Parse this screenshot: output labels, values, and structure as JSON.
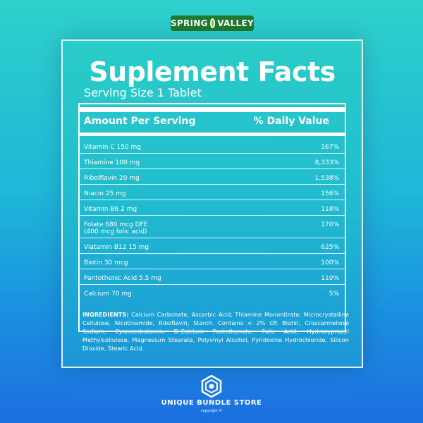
{
  "brand": {
    "left": "SPRING",
    "right": "VALLEY"
  },
  "title": "Suplement Facts",
  "serving": "Serving Size 1 Tablet",
  "header": {
    "amount": "Amount Per Serving",
    "daily": "% Daily Value"
  },
  "rows": [
    {
      "name": "Vitamin  C  150  mg",
      "dv": "167%"
    },
    {
      "name": "Thiamine  100 mg",
      "dv": "8,333%"
    },
    {
      "name": "Ribolflavin  20 mg",
      "dv": "1,538%"
    },
    {
      "name": "Niacin 25  mg",
      "dv": "156%"
    },
    {
      "name": "Vitamin B6  2  mg",
      "dv": "118%"
    },
    {
      "name": "Folate 680 mcg  DFE\n(400 mcg folic acid)",
      "dv": "170%"
    },
    {
      "name": "Viatamin B12  15  mg",
      "dv": "625%"
    },
    {
      "name": "Biotin  30 mcg",
      "dv": "100%"
    },
    {
      "name": "Pantothenic Acid 5.5   mg",
      "dv": "110%"
    },
    {
      "name": "Calcium 70 mg",
      "dv": "5%"
    }
  ],
  "ingredients": {
    "label": "INGREDIENTS:",
    "text": "Calcium Carbonate, Ascorbic Acid, Thiamine Mononitrate, Microcrystalline Cellulose, Nicotinamide, Riboflavin, Starch. Contains < 2% Of: Biotin, Croscarmellose Sodium, Cyanocobalamin, D-Calcium Pantothenate, Folic Acid, Hydroxypropyl Methylcellulose, Magnesium Stearate, Polyvinyl Alcohol, Pyridoxine Hydrochloride, Silicon Dioxide, Stearic Acid."
  },
  "store": {
    "name": "UNIQUE BUNDLE STORE",
    "copyright": "copyright ©"
  },
  "icons": {
    "brand": "leaf-icon",
    "store": "hexagon-icon"
  },
  "colors": {
    "bg_top": "#2fd0cb",
    "bg_bottom": "#1c6fe0",
    "brand": "#1e7a2e"
  }
}
